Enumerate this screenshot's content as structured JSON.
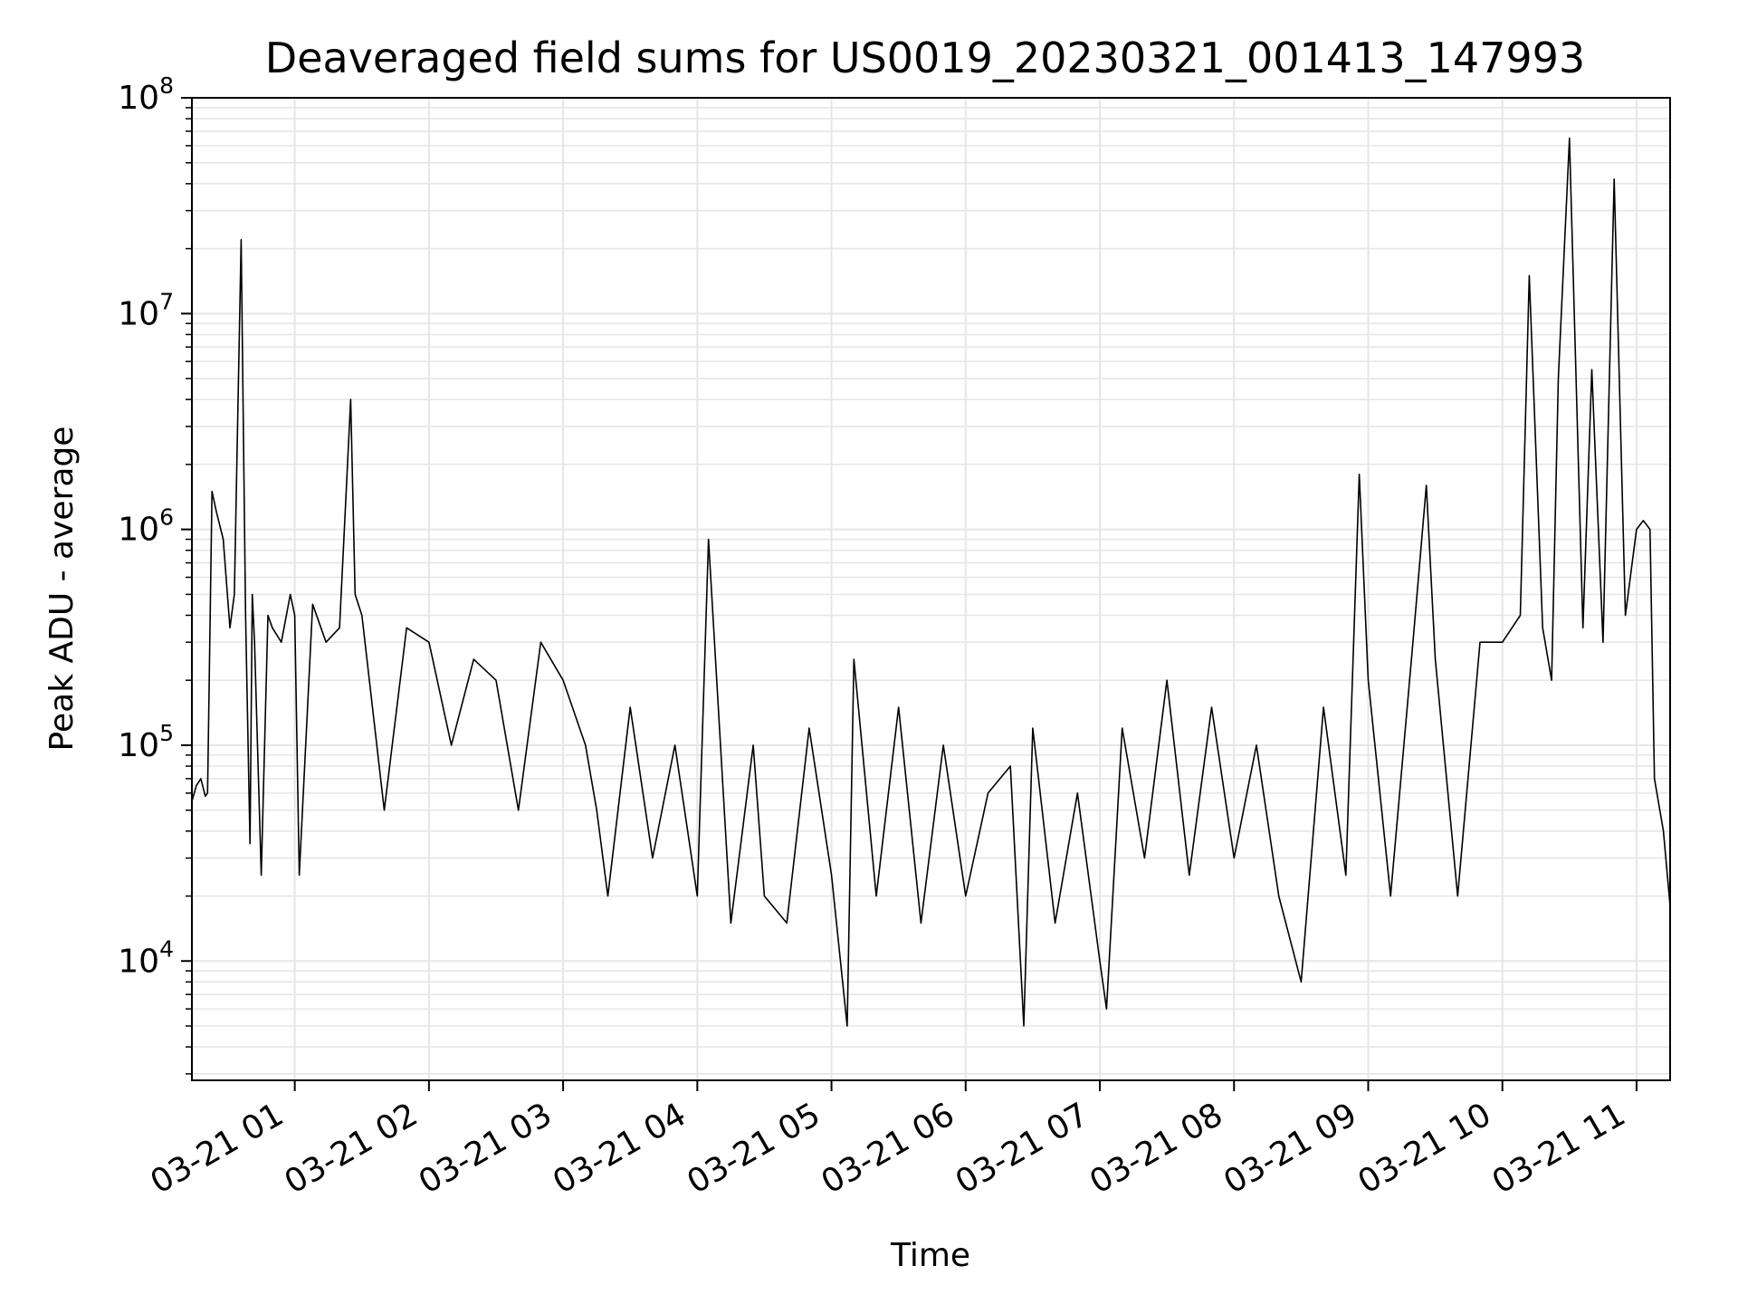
{
  "chart_data": {
    "type": "line",
    "title": "Deaveraged field sums for US0019_20230321_001413_147993",
    "xlabel": "Time",
    "ylabel": "Peak ADU - average",
    "yscale": "log",
    "ylim": [
      2800,
      100000000
    ],
    "xlim": [
      "2023-03-21 00:14",
      "2023-03-21 11:15"
    ],
    "grid": true,
    "line_color": "#000000",
    "grid_color": "#e6e6e6",
    "x_ticks": [
      {
        "label": "03-21 01",
        "value": "2023-03-21 01:00"
      },
      {
        "label": "03-21 02",
        "value": "2023-03-21 02:00"
      },
      {
        "label": "03-21 03",
        "value": "2023-03-21 03:00"
      },
      {
        "label": "03-21 04",
        "value": "2023-03-21 04:00"
      },
      {
        "label": "03-21 05",
        "value": "2023-03-21 05:00"
      },
      {
        "label": "03-21 06",
        "value": "2023-03-21 06:00"
      },
      {
        "label": "03-21 07",
        "value": "2023-03-21 07:00"
      },
      {
        "label": "03-21 08",
        "value": "2023-03-21 08:00"
      },
      {
        "label": "03-21 09",
        "value": "2023-03-21 09:00"
      },
      {
        "label": "03-21 10",
        "value": "2023-03-21 10:00"
      },
      {
        "label": "03-21 11",
        "value": "2023-03-21 11:00"
      }
    ],
    "y_ticks": [
      {
        "base": "10",
        "exp": "4",
        "value": 10000
      },
      {
        "base": "10",
        "exp": "5",
        "value": 100000
      },
      {
        "base": "10",
        "exp": "6",
        "value": 1000000
      },
      {
        "base": "10",
        "exp": "7",
        "value": 10000000
      },
      {
        "base": "10",
        "exp": "8",
        "value": 100000000
      }
    ],
    "series": [
      {
        "x": [
          "2023-03-21 00:14",
          "2023-03-21 00:16",
          "2023-03-21 00:18",
          "2023-03-21 00:20",
          "2023-03-21 00:21",
          "2023-03-21 00:23",
          "2023-03-21 00:25",
          "2023-03-21 00:28",
          "2023-03-21 00:31",
          "2023-03-21 00:33",
          "2023-03-21 00:36",
          "2023-03-21 00:38",
          "2023-03-21 00:40",
          "2023-03-21 00:41",
          "2023-03-21 00:42",
          "2023-03-21 00:45",
          "2023-03-21 00:48",
          "2023-03-21 00:50",
          "2023-03-21 00:54",
          "2023-03-21 00:58",
          "2023-03-21 01:00",
          "2023-03-21 01:02",
          "2023-03-21 01:08",
          "2023-03-21 01:14",
          "2023-03-21 01:20",
          "2023-03-21 01:25",
          "2023-03-21 01:27",
          "2023-03-21 01:30",
          "2023-03-21 01:40",
          "2023-03-21 01:50",
          "2023-03-21 02:00",
          "2023-03-21 02:10",
          "2023-03-21 02:20",
          "2023-03-21 02:30",
          "2023-03-21 02:40",
          "2023-03-21 02:50",
          "2023-03-21 03:00",
          "2023-03-21 03:10",
          "2023-03-21 03:15",
          "2023-03-21 03:20",
          "2023-03-21 03:30",
          "2023-03-21 03:40",
          "2023-03-21 03:50",
          "2023-03-21 04:00",
          "2023-03-21 04:05",
          "2023-03-21 04:15",
          "2023-03-21 04:25",
          "2023-03-21 04:30",
          "2023-03-21 04:40",
          "2023-03-21 04:50",
          "2023-03-21 05:00",
          "2023-03-21 05:07",
          "2023-03-21 05:10",
          "2023-03-21 05:20",
          "2023-03-21 05:30",
          "2023-03-21 05:40",
          "2023-03-21 05:50",
          "2023-03-21 06:00",
          "2023-03-21 06:10",
          "2023-03-21 06:20",
          "2023-03-21 06:26",
          "2023-03-21 06:30",
          "2023-03-21 06:40",
          "2023-03-21 06:50",
          "2023-03-21 07:00",
          "2023-03-21 07:03",
          "2023-03-21 07:10",
          "2023-03-21 07:20",
          "2023-03-21 07:30",
          "2023-03-21 07:40",
          "2023-03-21 07:50",
          "2023-03-21 08:00",
          "2023-03-21 08:10",
          "2023-03-21 08:20",
          "2023-03-21 08:30",
          "2023-03-21 08:40",
          "2023-03-21 08:50",
          "2023-03-21 08:56",
          "2023-03-21 09:00",
          "2023-03-21 09:10",
          "2023-03-21 09:20",
          "2023-03-21 09:26",
          "2023-03-21 09:30",
          "2023-03-21 09:40",
          "2023-03-21 09:50",
          "2023-03-21 10:00",
          "2023-03-21 10:08",
          "2023-03-21 10:12",
          "2023-03-21 10:18",
          "2023-03-21 10:22",
          "2023-03-21 10:25",
          "2023-03-21 10:30",
          "2023-03-21 10:36",
          "2023-03-21 10:40",
          "2023-03-21 10:45",
          "2023-03-21 10:50",
          "2023-03-21 10:55",
          "2023-03-21 11:00",
          "2023-03-21 11:03",
          "2023-03-21 11:06",
          "2023-03-21 11:08",
          "2023-03-21 11:12",
          "2023-03-21 11:15"
        ],
        "y": [
          55000,
          65000,
          70000,
          58000,
          60000,
          1500000,
          1200000,
          900000,
          350000,
          500000,
          22000000,
          400000,
          35000,
          500000,
          300000,
          25000,
          400000,
          350000,
          300000,
          500000,
          400000,
          25000,
          450000,
          300000,
          350000,
          4000000,
          500000,
          400000,
          50000,
          350000,
          300000,
          100000,
          250000,
          200000,
          50000,
          300000,
          200000,
          100000,
          50000,
          20000,
          150000,
          30000,
          100000,
          20000,
          900000,
          15000,
          100000,
          20000,
          15000,
          120000,
          25000,
          5000,
          250000,
          20000,
          150000,
          15000,
          100000,
          20000,
          60000,
          80000,
          5000,
          120000,
          15000,
          60000,
          10000,
          6000,
          120000,
          30000,
          200000,
          25000,
          150000,
          30000,
          100000,
          20000,
          8000,
          150000,
          25000,
          1800000,
          200000,
          20000,
          300000,
          1600000,
          250000,
          20000,
          300000,
          300000,
          400000,
          15000000,
          350000,
          200000,
          5000000,
          65000000,
          350000,
          5500000,
          300000,
          42000000,
          400000,
          1000000,
          1100000,
          1000000,
          70000,
          40000,
          18000
        ]
      }
    ]
  }
}
